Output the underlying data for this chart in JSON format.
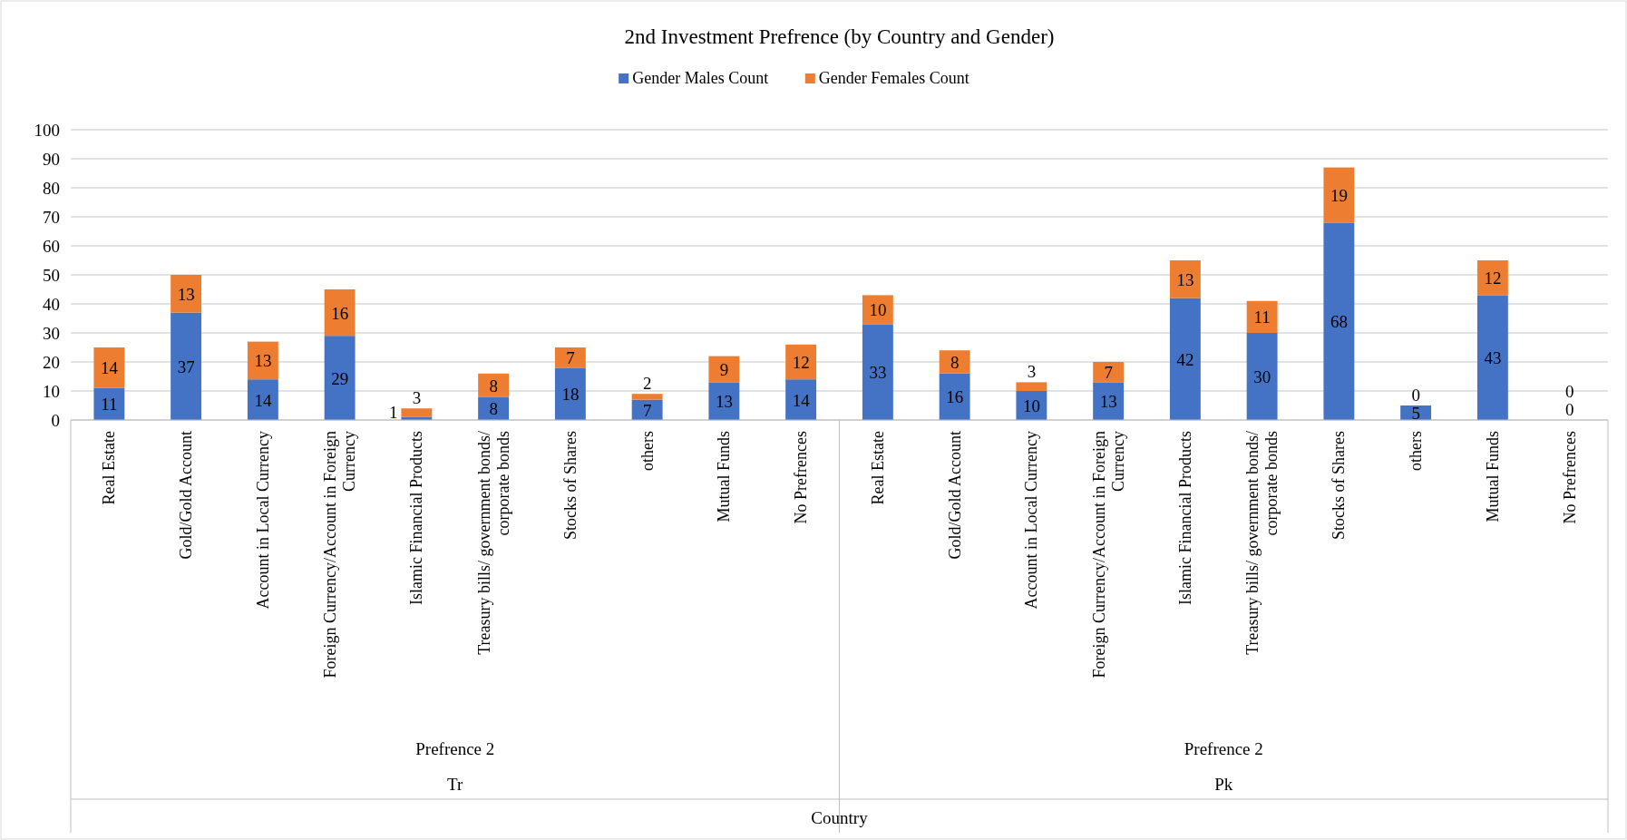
{
  "chart_data": {
    "type": "bar",
    "title": "2nd Investment Prefrence (by Country and Gender)",
    "categories": [
      "Real Estate",
      "Gold/Gold Account",
      "Account in Local Currency",
      "Foreign Currency/Account in Foreign Currency",
      "Islamic Financial Products",
      "Treasury bills/ government bonds/ corporate bonds",
      "Stocks of Shares",
      "others",
      "Mutual Funds",
      "No Prefrences",
      "Real Estate",
      "Gold/Gold Account",
      "Account in Local Currency",
      "Foreign Currency/Account in Foreign Currency",
      "Islamic Financial Products",
      "Treasury bills/ government bonds/ corporate bonds",
      "Stocks of Shares",
      "others",
      "Mutual Funds",
      "No Prefrences"
    ],
    "series": [
      {
        "name": "Gender Males Count",
        "color": "#4472c4",
        "values": [
          11,
          37,
          14,
          29,
          1,
          8,
          18,
          7,
          13,
          14,
          33,
          16,
          10,
          13,
          42,
          30,
          68,
          5,
          43,
          0
        ]
      },
      {
        "name": "Gender Females Count",
        "color": "#ed7d31",
        "values": [
          14,
          13,
          13,
          16,
          3,
          8,
          7,
          2,
          9,
          12,
          10,
          8,
          3,
          7,
          13,
          11,
          19,
          0,
          12,
          0
        ]
      }
    ],
    "annotations": [
      "Prefrence 2",
      "Tr",
      "Prefrence 2",
      "Pk",
      "Country"
    ],
    "stacked": true,
    "data_labels": true,
    "ylim": [
      0,
      100
    ],
    "yticks": [
      0,
      10,
      20,
      30,
      40,
      50,
      60,
      70,
      80,
      90,
      100
    ],
    "grid": "y",
    "legend": "top"
  }
}
